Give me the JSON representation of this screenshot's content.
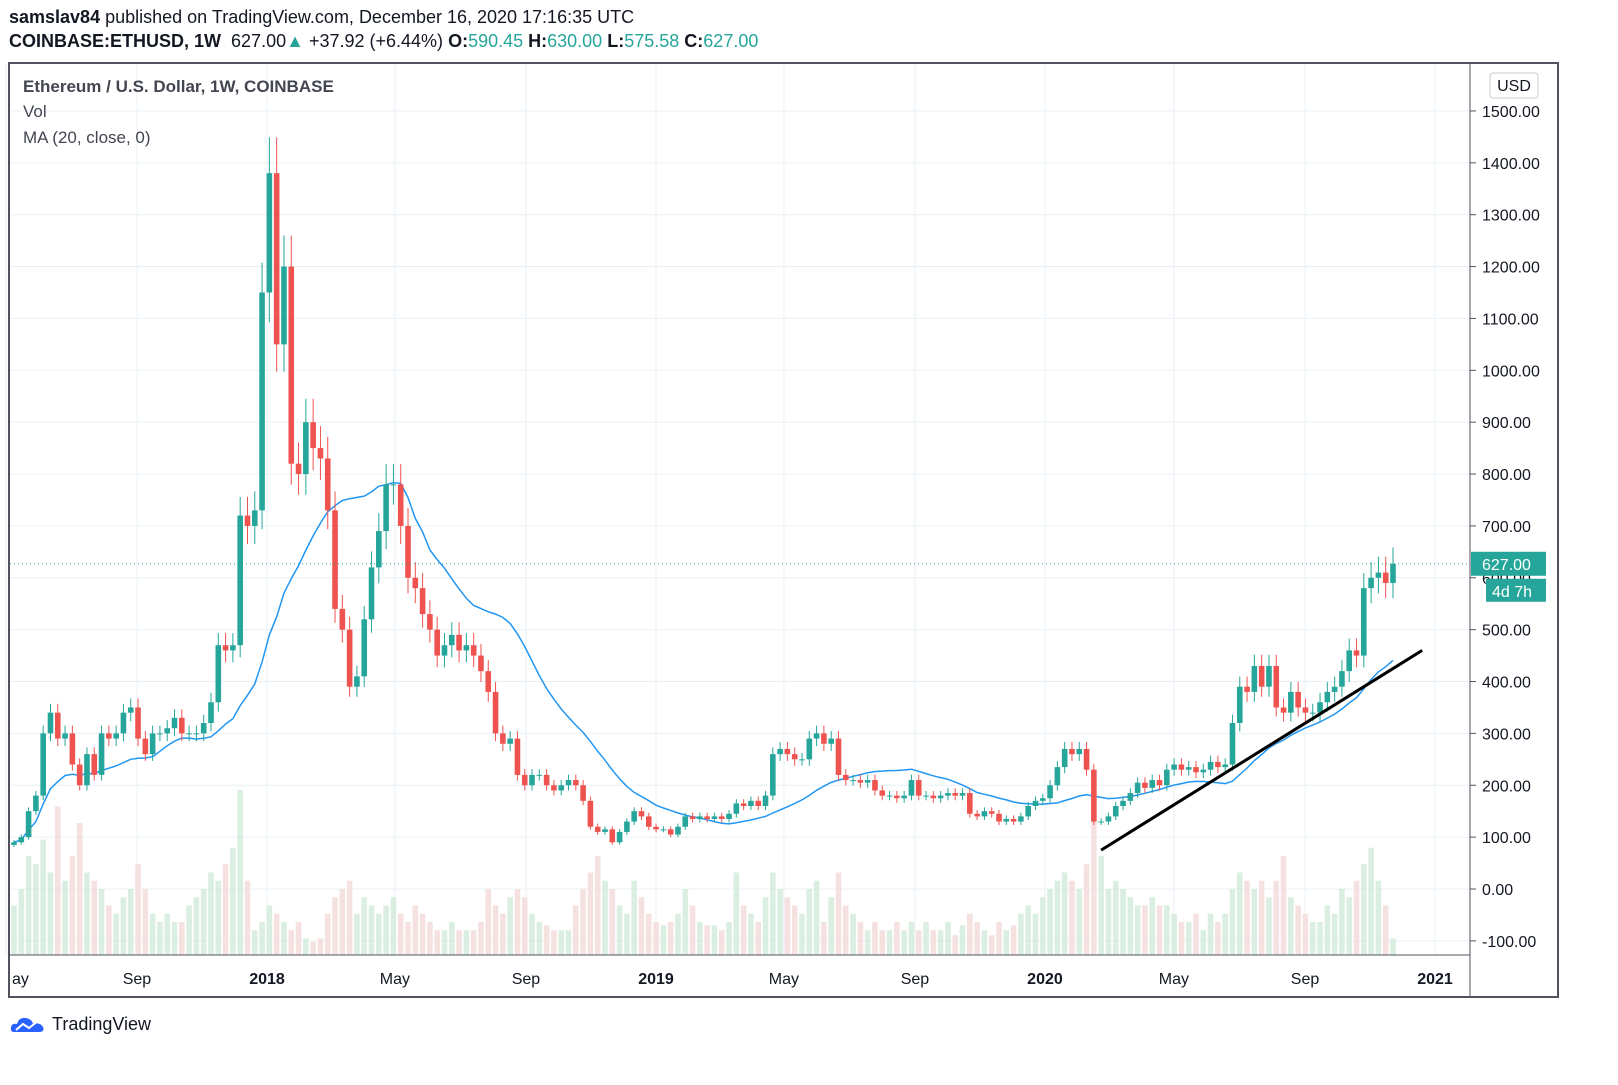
{
  "header": {
    "publisher": "samslav84",
    "published_text": "published on TradingView.com, December 16, 2020 17:16:35 UTC",
    "symbol": "COINBASE:ETHUSD, 1W",
    "last": "627.00",
    "change": "+37.92 (+6.44%)",
    "o_label": "O:",
    "o": "590.45",
    "h_label": "H:",
    "h": "630.00",
    "l_label": "L:",
    "l": "575.58",
    "c_label": "C:",
    "c": "627.00"
  },
  "legend": {
    "title": "Ethereum / U.S. Dollar, 1W, COINBASE",
    "vol": "Vol",
    "ma": "MA (20, close, 0)"
  },
  "footer": {
    "brand": "TradingView"
  },
  "chart_data": {
    "type": "candlestick",
    "title": "Ethereum / U.S. Dollar, 1W, COINBASE",
    "currency": "USD",
    "ylim": [
      -100,
      1500
    ],
    "price_ticks": [
      "1500.00",
      "1400.00",
      "1300.00",
      "1200.00",
      "1100.00",
      "1000.00",
      "900.00",
      "800.00",
      "700.00",
      "600.00",
      "500.00",
      "400.00",
      "300.00",
      "200.00",
      "100.00",
      "0.00",
      "-100.00"
    ],
    "time_ticks": [
      {
        "label": "ay",
        "date": "2017-05-01"
      },
      {
        "label": "Sep",
        "date": "2017-09-01"
      },
      {
        "label": "2018",
        "date": "2018-01-01",
        "bold": true
      },
      {
        "label": "May",
        "date": "2018-05-01"
      },
      {
        "label": "Sep",
        "date": "2018-09-01"
      },
      {
        "label": "2019",
        "date": "2019-01-01",
        "bold": true
      },
      {
        "label": "May",
        "date": "2019-05-01"
      },
      {
        "label": "Sep",
        "date": "2019-09-01"
      },
      {
        "label": "2020",
        "date": "2020-01-01",
        "bold": true
      },
      {
        "label": "May",
        "date": "2020-05-01"
      },
      {
        "label": "Sep",
        "date": "2020-09-01"
      },
      {
        "label": "2021",
        "date": "2021-01-01",
        "bold": true
      }
    ],
    "first_open": 85,
    "bars_close_volume": [
      [
        90,
        30
      ],
      [
        100,
        40
      ],
      [
        150,
        60
      ],
      [
        180,
        55
      ],
      [
        300,
        70
      ],
      [
        340,
        50
      ],
      [
        290,
        90
      ],
      [
        300,
        45
      ],
      [
        240,
        60
      ],
      [
        200,
        80
      ],
      [
        260,
        50
      ],
      [
        220,
        45
      ],
      [
        300,
        40
      ],
      [
        290,
        30
      ],
      [
        300,
        25
      ],
      [
        340,
        35
      ],
      [
        350,
        40
      ],
      [
        290,
        55
      ],
      [
        260,
        40
      ],
      [
        300,
        25
      ],
      [
        300,
        20
      ],
      [
        310,
        25
      ],
      [
        330,
        20
      ],
      [
        300,
        20
      ],
      [
        300,
        30
      ],
      [
        300,
        35
      ],
      [
        320,
        40
      ],
      [
        360,
        50
      ],
      [
        470,
        45
      ],
      [
        460,
        55
      ],
      [
        470,
        65
      ],
      [
        720,
        100
      ],
      [
        700,
        45
      ],
      [
        730,
        15
      ],
      [
        1150,
        20
      ],
      [
        1380,
        30
      ],
      [
        1050,
        25
      ],
      [
        1200,
        20
      ],
      [
        820,
        15
      ],
      [
        800,
        20
      ],
      [
        900,
        10
      ],
      [
        850,
        8
      ],
      [
        830,
        10
      ],
      [
        730,
        25
      ],
      [
        540,
        35
      ],
      [
        500,
        40
      ],
      [
        390,
        45
      ],
      [
        410,
        25
      ],
      [
        520,
        35
      ],
      [
        620,
        30
      ],
      [
        690,
        25
      ],
      [
        780,
        30
      ],
      [
        780,
        35
      ],
      [
        700,
        25
      ],
      [
        600,
        20
      ],
      [
        580,
        30
      ],
      [
        530,
        25
      ],
      [
        500,
        20
      ],
      [
        450,
        15
      ],
      [
        470,
        15
      ],
      [
        490,
        20
      ],
      [
        460,
        15
      ],
      [
        470,
        15
      ],
      [
        450,
        15
      ],
      [
        420,
        20
      ],
      [
        380,
        40
      ],
      [
        300,
        30
      ],
      [
        280,
        25
      ],
      [
        290,
        35
      ],
      [
        220,
        40
      ],
      [
        200,
        35
      ],
      [
        220,
        25
      ],
      [
        220,
        20
      ],
      [
        200,
        18
      ],
      [
        190,
        15
      ],
      [
        200,
        15
      ],
      [
        210,
        15
      ],
      [
        200,
        30
      ],
      [
        170,
        40
      ],
      [
        120,
        50
      ],
      [
        110,
        60
      ],
      [
        115,
        45
      ],
      [
        90,
        40
      ],
      [
        110,
        30
      ],
      [
        130,
        25
      ],
      [
        150,
        45
      ],
      [
        140,
        35
      ],
      [
        120,
        25
      ],
      [
        115,
        20
      ],
      [
        115,
        18
      ],
      [
        105,
        20
      ],
      [
        120,
        25
      ],
      [
        140,
        40
      ],
      [
        135,
        30
      ],
      [
        140,
        20
      ],
      [
        135,
        18
      ],
      [
        140,
        18
      ],
      [
        135,
        15
      ],
      [
        145,
        20
      ],
      [
        165,
        50
      ],
      [
        160,
        30
      ],
      [
        170,
        25
      ],
      [
        160,
        20
      ],
      [
        180,
        35
      ],
      [
        260,
        50
      ],
      [
        270,
        40
      ],
      [
        260,
        35
      ],
      [
        250,
        30
      ],
      [
        250,
        25
      ],
      [
        290,
        40
      ],
      [
        300,
        45
      ],
      [
        280,
        20
      ],
      [
        290,
        35
      ],
      [
        220,
        50
      ],
      [
        210,
        30
      ],
      [
        210,
        25
      ],
      [
        205,
        20
      ],
      [
        210,
        15
      ],
      [
        190,
        20
      ],
      [
        180,
        15
      ],
      [
        180,
        15
      ],
      [
        175,
        20
      ],
      [
        180,
        15
      ],
      [
        210,
        20
      ],
      [
        180,
        15
      ],
      [
        180,
        20
      ],
      [
        175,
        15
      ],
      [
        180,
        15
      ],
      [
        185,
        20
      ],
      [
        180,
        12
      ],
      [
        185,
        18
      ],
      [
        145,
        25
      ],
      [
        140,
        20
      ],
      [
        150,
        15
      ],
      [
        145,
        12
      ],
      [
        130,
        20
      ],
      [
        135,
        15
      ],
      [
        130,
        18
      ],
      [
        140,
        25
      ],
      [
        160,
        30
      ],
      [
        170,
        25
      ],
      [
        175,
        35
      ],
      [
        200,
        40
      ],
      [
        235,
        45
      ],
      [
        270,
        50
      ],
      [
        260,
        45
      ],
      [
        270,
        40
      ],
      [
        230,
        55
      ],
      [
        130,
        90
      ],
      [
        130,
        60
      ],
      [
        140,
        40
      ],
      [
        160,
        45
      ],
      [
        170,
        40
      ],
      [
        185,
        35
      ],
      [
        205,
        30
      ],
      [
        195,
        30
      ],
      [
        210,
        35
      ],
      [
        200,
        30
      ],
      [
        230,
        30
      ],
      [
        240,
        25
      ],
      [
        230,
        20
      ],
      [
        235,
        20
      ],
      [
        225,
        25
      ],
      [
        230,
        15
      ],
      [
        245,
        25
      ],
      [
        235,
        20
      ],
      [
        240,
        25
      ],
      [
        320,
        40
      ],
      [
        390,
        50
      ],
      [
        380,
        45
      ],
      [
        430,
        40
      ],
      [
        390,
        45
      ],
      [
        430,
        35
      ],
      [
        350,
        45
      ],
      [
        340,
        60
      ],
      [
        380,
        35
      ],
      [
        350,
        30
      ],
      [
        340,
        25
      ],
      [
        340,
        20
      ],
      [
        360,
        20
      ],
      [
        380,
        30
      ],
      [
        390,
        25
      ],
      [
        420,
        40
      ],
      [
        460,
        35
      ],
      [
        450,
        45
      ],
      [
        580,
        55
      ],
      [
        600,
        65
      ],
      [
        610,
        45
      ],
      [
        590,
        30
      ],
      [
        627,
        10
      ]
    ],
    "ma_period": 20,
    "trendline": {
      "from": {
        "bar": 149,
        "price": 75
      },
      "to": {
        "bar": 193,
        "price": 460
      }
    },
    "last_price_label": "627.00",
    "countdown": "4d 7h",
    "colors": {
      "up": "#26a69a",
      "down": "#ef5350",
      "ma": "#2196f3",
      "grid": "#e9f0f5",
      "vol_up": "#d3ebdc",
      "vol_down": "#f4dcdc",
      "trend": "#000000"
    }
  }
}
